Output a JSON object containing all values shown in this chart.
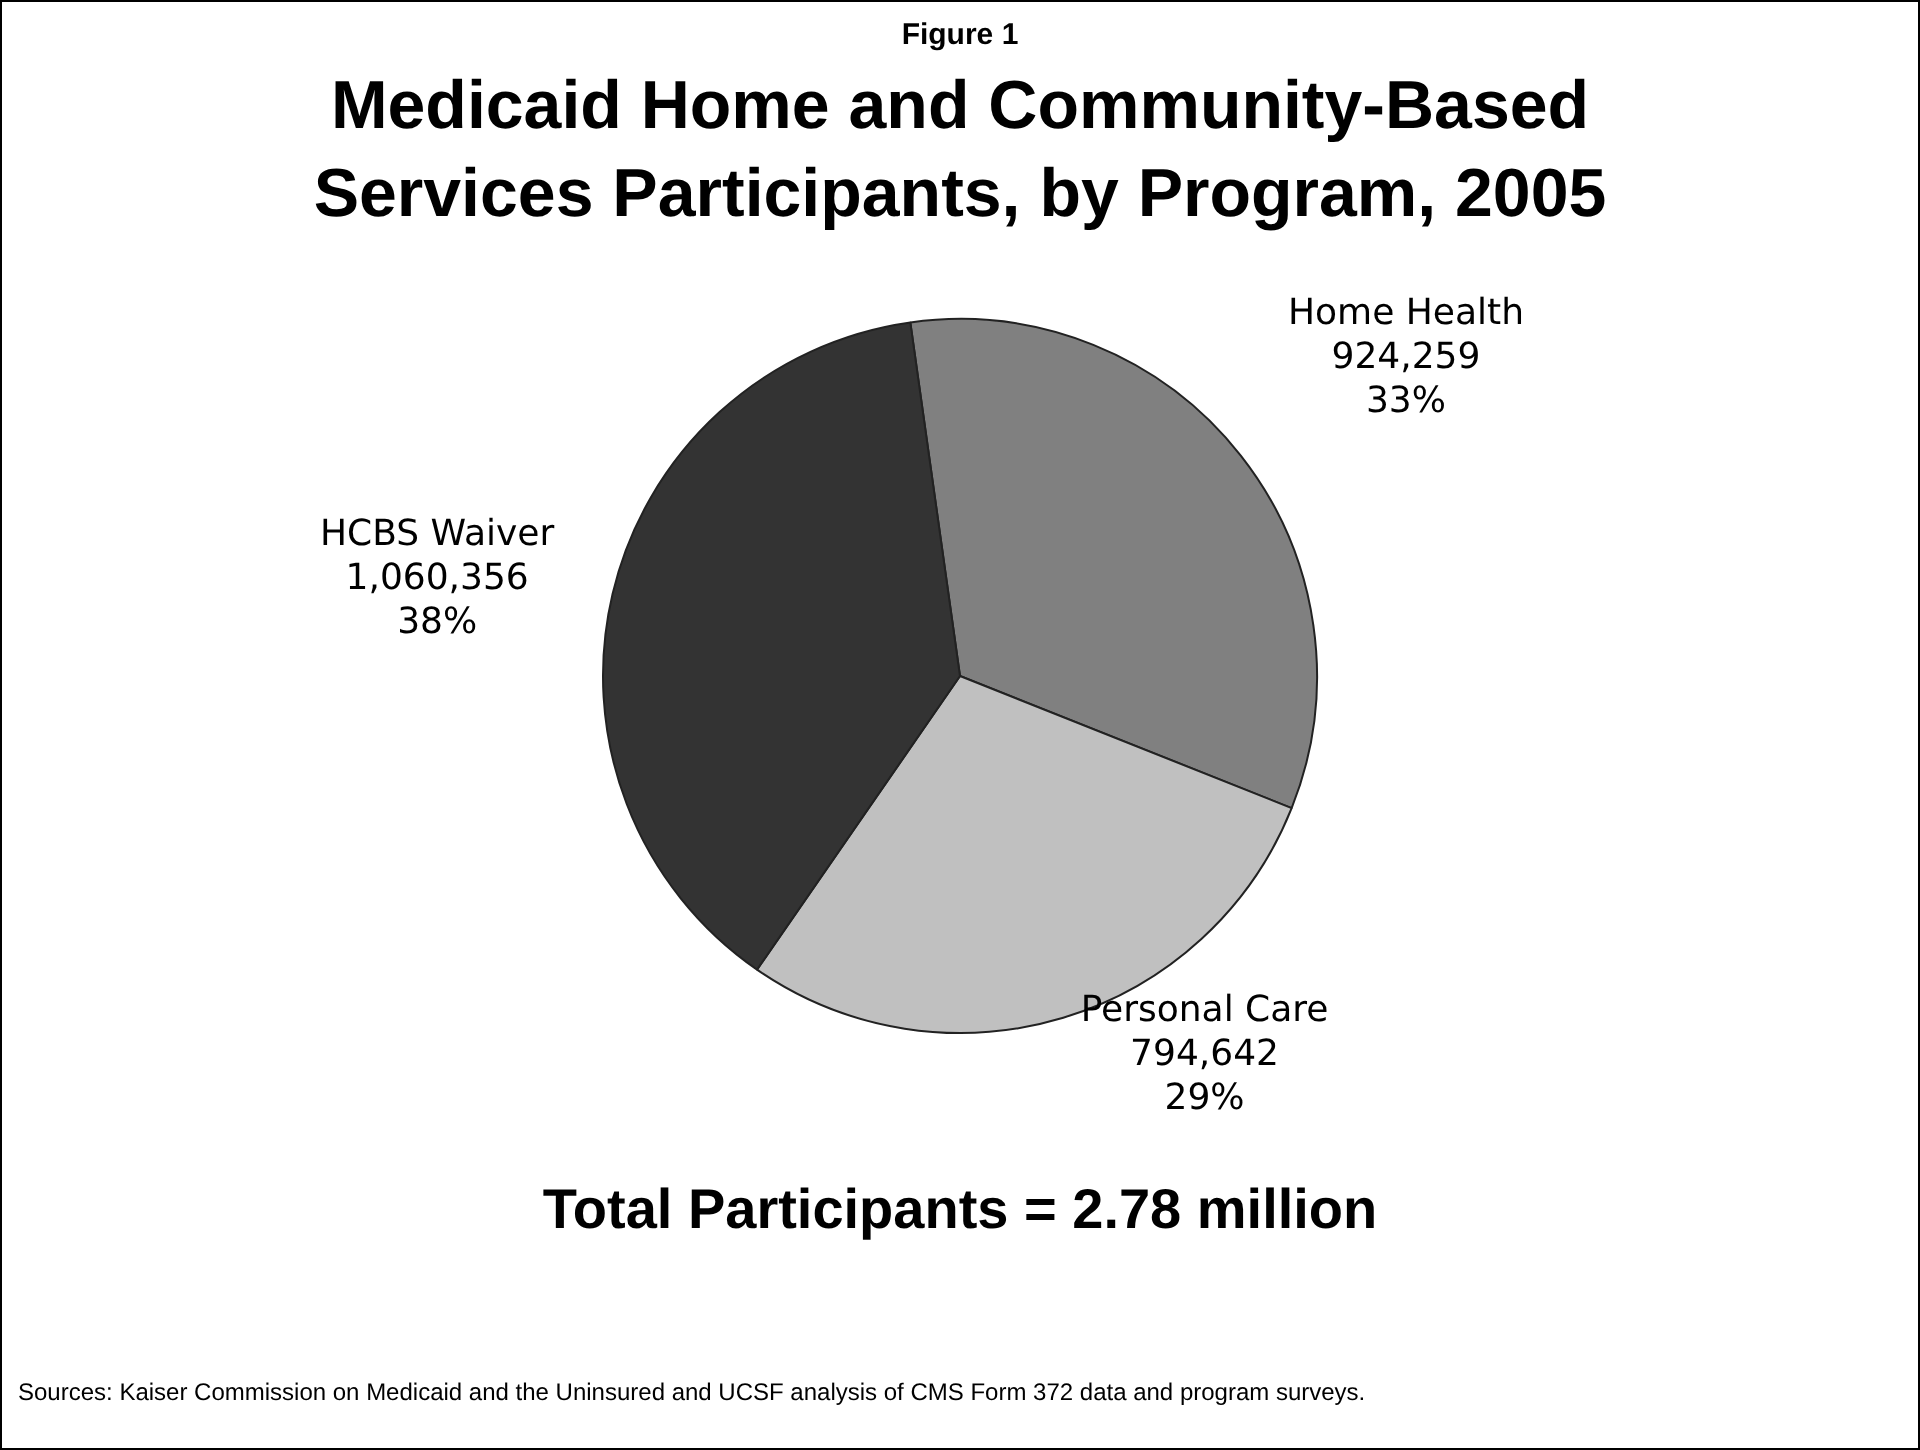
{
  "chart_data": {
    "type": "pie",
    "subtitle": "Figure 1",
    "title": "Medicaid Home and Community-Based Services Participants, by Program, 2005",
    "categories": [
      "Home Health",
      "Personal Care",
      "HCBS Waiver"
    ],
    "values": [
      924259,
      794642,
      1060356
    ],
    "value_labels": [
      "924,259\n33%",
      "794,642\n29%",
      "1,060,356\n38%"
    ],
    "colors": [
      "#808080",
      "#c0c0c0",
      "#333333"
    ],
    "legend": false,
    "annotations": [
      "Total Participants = 2.78 million",
      "Sources: Kaiser Commission on Medicaid and the Uninsured and UCSF analysis of CMS Form 372 data and program surveys."
    ]
  }
}
